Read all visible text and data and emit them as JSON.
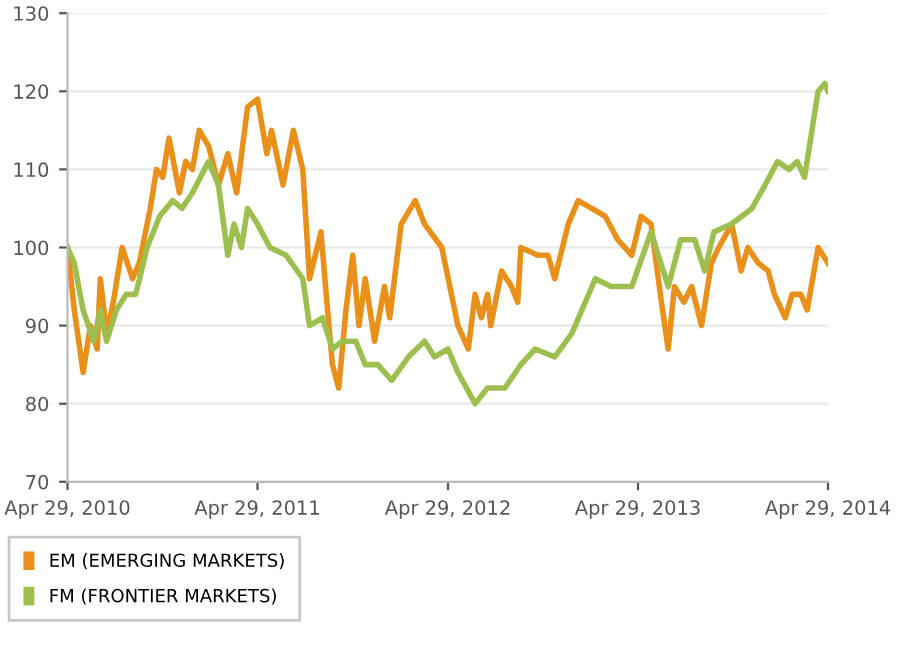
{
  "chart_data": {
    "type": "line",
    "xlim": [
      "2010-04-29",
      "2014-04-29"
    ],
    "ylim": [
      70,
      130
    ],
    "xticks": [
      {
        "value": "2010-04-29",
        "label": "Apr 29, 2010"
      },
      {
        "value": "2011-04-29",
        "label": "Apr 29, 2011"
      },
      {
        "value": "2012-04-29",
        "label": "Apr 29, 2012"
      },
      {
        "value": "2013-04-29",
        "label": "Apr 29, 2013"
      },
      {
        "value": "2014-04-29",
        "label": "Apr 29, 2014"
      }
    ],
    "yticks": [
      70,
      80,
      90,
      100,
      110,
      120,
      130
    ],
    "grid": "y",
    "legend": "bottom left",
    "marker": "none",
    "line_style": "solid",
    "series": [
      {
        "name": "EM (EMERGING MARKETS)",
        "color": "#e8901a",
        "x": [
          "2010-04-29",
          "2010-05-12",
          "2010-05-29",
          "2010-06-12",
          "2010-06-25",
          "2010-07-01",
          "2010-07-13",
          "2010-07-26",
          "2010-08-12",
          "2010-09-01",
          "2010-09-14",
          "2010-10-05",
          "2010-10-17",
          "2010-10-29",
          "2010-11-10",
          "2010-11-30",
          "2010-12-12",
          "2010-12-25",
          "2011-01-07",
          "2011-01-25",
          "2011-02-13",
          "2011-03-03",
          "2011-03-20",
          "2011-04-10",
          "2011-04-29",
          "2011-05-17",
          "2011-05-26",
          "2011-06-17",
          "2011-07-07",
          "2011-07-25",
          "2011-08-07",
          "2011-08-29",
          "2011-09-08",
          "2011-09-20",
          "2011-10-02",
          "2011-10-16",
          "2011-10-29",
          "2011-11-10",
          "2011-11-22",
          "2011-12-10",
          "2011-12-29",
          "2012-01-08",
          "2012-01-30",
          "2012-02-26",
          "2012-03-15",
          "2012-04-17",
          "2012-05-18",
          "2012-06-07",
          "2012-06-20",
          "2012-07-02",
          "2012-07-14",
          "2012-07-20",
          "2012-08-10",
          "2012-08-29",
          "2012-09-10",
          "2012-09-16",
          "2012-10-19",
          "2012-11-07",
          "2012-11-20",
          "2012-12-16",
          "2013-01-04",
          "2013-01-30",
          "2013-02-25",
          "2013-03-21",
          "2013-04-17",
          "2013-05-05",
          "2013-05-24",
          "2013-06-13",
          "2013-06-26",
          "2013-07-08",
          "2013-07-26",
          "2013-08-10",
          "2013-08-29",
          "2013-09-17",
          "2013-10-01",
          "2013-10-26",
          "2013-11-13",
          "2013-11-26",
          "2013-12-16",
          "2014-01-04",
          "2014-01-16",
          "2014-02-06",
          "2014-02-19",
          "2014-03-08",
          "2014-03-20",
          "2014-04-10",
          "2014-04-29"
        ],
        "values": [
          100,
          92,
          84,
          90,
          87,
          96,
          89,
          93,
          100,
          96,
          98,
          105,
          110,
          109,
          114,
          107,
          111,
          110,
          115,
          113,
          108,
          112,
          107,
          118,
          119,
          112,
          115,
          108,
          115,
          110,
          96,
          102,
          94,
          85,
          82,
          92,
          99,
          90,
          96,
          88,
          95,
          91,
          103,
          106,
          103,
          100,
          90,
          87,
          94,
          91,
          94,
          90,
          97,
          95,
          93,
          100,
          99,
          99,
          96,
          103,
          106,
          105,
          104,
          101,
          99,
          104,
          103,
          93,
          87,
          95,
          93,
          95,
          90,
          98,
          100,
          103,
          97,
          100,
          98,
          97,
          94,
          91,
          94,
          94,
          92,
          100,
          98
        ]
      },
      {
        "name": "FM (FRONTIER MARKETS)",
        "color": "#9dbf4f",
        "x": [
          "2010-04-29",
          "2010-05-12",
          "2010-05-29",
          "2010-06-18",
          "2010-07-01",
          "2010-07-13",
          "2010-08-01",
          "2010-08-20",
          "2010-09-07",
          "2010-09-29",
          "2010-10-23",
          "2010-11-17",
          "2010-12-05",
          "2010-12-25",
          "2011-01-25",
          "2011-02-13",
          "2011-03-03",
          "2011-03-15",
          "2011-03-29",
          "2011-04-10",
          "2011-04-29",
          "2011-05-23",
          "2011-06-23",
          "2011-07-25",
          "2011-08-07",
          "2011-09-01",
          "2011-09-20",
          "2011-10-09",
          "2011-11-04",
          "2011-11-22",
          "2011-12-16",
          "2012-01-12",
          "2012-02-13",
          "2012-03-15",
          "2012-04-03",
          "2012-04-29",
          "2012-05-18",
          "2012-06-20",
          "2012-07-14",
          "2012-08-16",
          "2012-09-16",
          "2012-10-13",
          "2012-11-20",
          "2012-12-23",
          "2013-02-06",
          "2013-03-08",
          "2013-04-17",
          "2013-05-24",
          "2013-06-26",
          "2013-07-20",
          "2013-08-16",
          "2013-09-04",
          "2013-09-22",
          "2013-10-26",
          "2013-12-04",
          "2013-12-29",
          "2014-01-22",
          "2014-02-13",
          "2014-03-01",
          "2014-03-15",
          "2014-04-10",
          "2014-04-23",
          "2014-04-29"
        ],
        "values": [
          100,
          98,
          92,
          88,
          92,
          88,
          92,
          94,
          94,
          100,
          104,
          106,
          105,
          107,
          111,
          108,
          99,
          103,
          100,
          105,
          103,
          100,
          99,
          96,
          90,
          91,
          87,
          88,
          88,
          85,
          85,
          83,
          86,
          88,
          86,
          87,
          84,
          80,
          82,
          82,
          85,
          87,
          86,
          89,
          96,
          95,
          95,
          102,
          95,
          101,
          101,
          97,
          102,
          103,
          105,
          108,
          111,
          110,
          111,
          109,
          120,
          121,
          120
        ]
      }
    ]
  }
}
